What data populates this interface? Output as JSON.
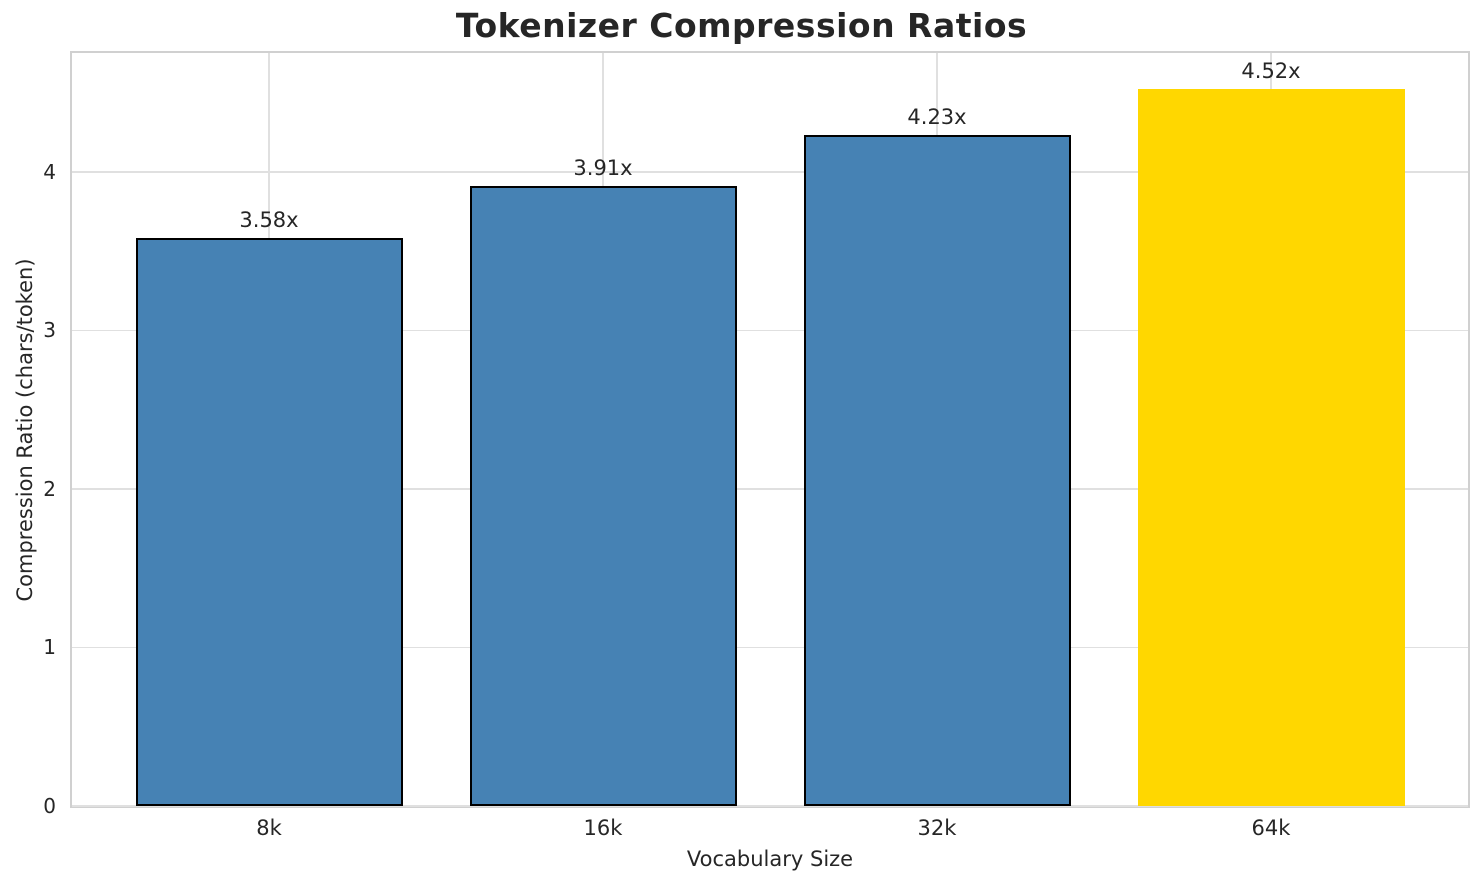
{
  "chart_data": {
    "type": "bar",
    "title": "Tokenizer Compression Ratios",
    "xlabel": "Vocabulary Size",
    "ylabel": "Compression Ratio (chars/token)",
    "categories": [
      "8k",
      "16k",
      "32k",
      "64k"
    ],
    "values": [
      3.58,
      3.91,
      4.23,
      4.52
    ],
    "bar_labels": [
      "3.58x",
      "3.91x",
      "4.23x",
      "4.52x"
    ],
    "bar_colors": [
      "#4682b4",
      "#4682b4",
      "#4682b4",
      "#ffd700"
    ],
    "bar_edge_colors": [
      "#000000",
      "#000000",
      "#000000",
      "none"
    ],
    "yticks": [
      0,
      1,
      2,
      3,
      4
    ],
    "ylim": [
      0,
      4.75
    ],
    "grid": true,
    "legend": "none",
    "colors": {
      "base_bar": "#4682b4",
      "highlight_bar": "#ffd700",
      "bar_edge": "#000000",
      "grid": "#e0e0e0",
      "spine": "#d0d0d0",
      "text": "#262626",
      "background": "#ffffff"
    }
  }
}
